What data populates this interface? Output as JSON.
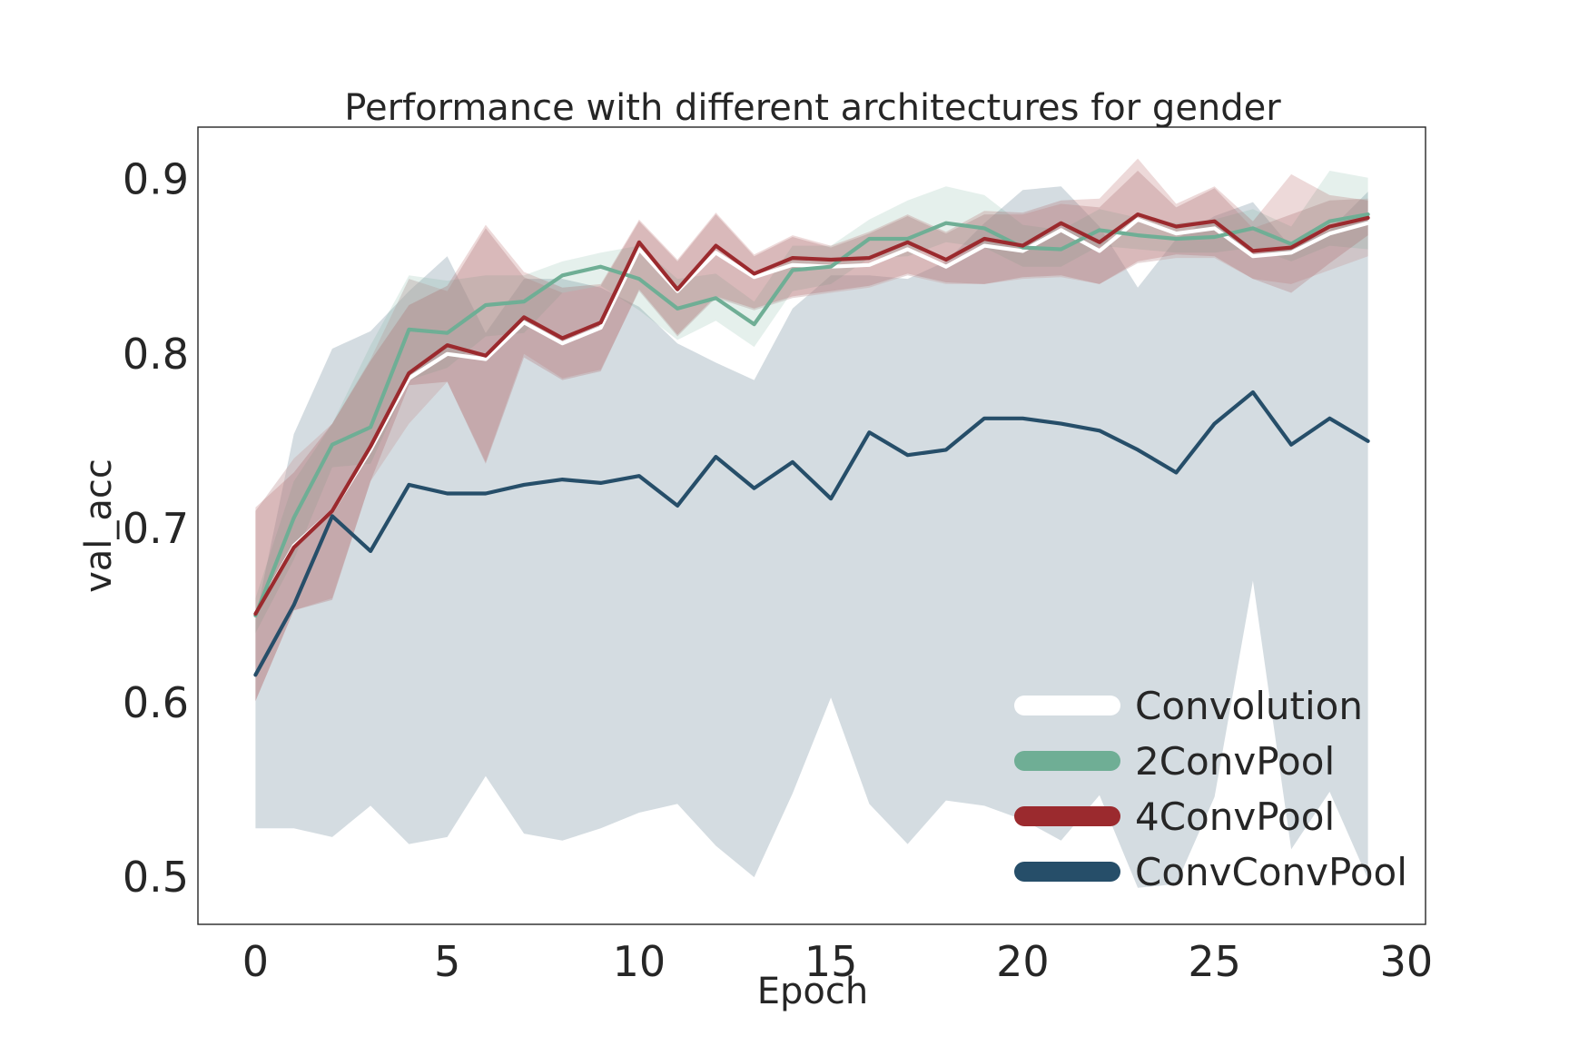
{
  "chart_data": {
    "type": "line",
    "title": "Performance with different architectures for gender",
    "xlabel": "Epoch",
    "ylabel": "val_acc",
    "xlim": [
      -1.5,
      30.5
    ],
    "ylim": [
      0.473,
      0.93
    ],
    "xticks": [
      0,
      5,
      10,
      15,
      20,
      25,
      30
    ],
    "yticks": [
      0.5,
      0.6,
      0.7,
      0.8,
      0.9
    ],
    "xtick_labels": [
      "0",
      "5",
      "10",
      "15",
      "20",
      "25",
      "30"
    ],
    "ytick_labels": [
      "0.5",
      "0.6",
      "0.7",
      "0.8",
      "0.9"
    ],
    "grid": false,
    "legend_position": "lower-right",
    "x": [
      0,
      1,
      2,
      3,
      4,
      5,
      6,
      7,
      8,
      9,
      10,
      11,
      12,
      13,
      14,
      15,
      16,
      17,
      18,
      19,
      20,
      21,
      22,
      23,
      24,
      25,
      26,
      27,
      28,
      29
    ],
    "series": [
      {
        "name": "Convolution",
        "color": "#ffffff",
        "values": [
          0.651,
          0.69,
          0.71,
          0.745,
          0.786,
          0.8,
          0.797,
          0.818,
          0.806,
          0.815,
          0.86,
          0.836,
          0.858,
          0.844,
          0.851,
          0.85,
          0.851,
          0.86,
          0.85,
          0.862,
          0.859,
          0.871,
          0.859,
          0.877,
          0.869,
          0.872,
          0.856,
          0.858,
          0.869,
          0.875
        ],
        "band_low": [
          0.601,
          0.653,
          0.66,
          0.727,
          0.76,
          0.784,
          0.738,
          0.8,
          0.786,
          0.791,
          0.836,
          0.81,
          0.832,
          0.825,
          0.832,
          0.835,
          0.838,
          0.845,
          0.84,
          0.84,
          0.843,
          0.844,
          0.84,
          0.852,
          0.855,
          0.855,
          0.843,
          0.84,
          0.848,
          0.856
        ],
        "band_high": [
          0.71,
          0.74,
          0.76,
          0.797,
          0.843,
          0.836,
          0.872,
          0.844,
          0.835,
          0.839,
          0.876,
          0.853,
          0.88,
          0.856,
          0.867,
          0.861,
          0.869,
          0.879,
          0.869,
          0.88,
          0.88,
          0.886,
          0.884,
          0.905,
          0.884,
          0.895,
          0.872,
          0.88,
          0.888,
          0.889
        ]
      },
      {
        "name": "2ConvPool",
        "color": "#6fae95",
        "values": [
          0.65,
          0.706,
          0.748,
          0.758,
          0.814,
          0.812,
          0.828,
          0.83,
          0.845,
          0.85,
          0.843,
          0.826,
          0.832,
          0.817,
          0.848,
          0.85,
          0.866,
          0.866,
          0.875,
          0.872,
          0.861,
          0.86,
          0.871,
          0.868,
          0.866,
          0.867,
          0.872,
          0.863,
          0.876,
          0.88
        ],
        "band_low": [
          0.64,
          0.682,
          0.735,
          0.737,
          0.785,
          0.792,
          0.81,
          0.812,
          0.835,
          0.839,
          0.825,
          0.808,
          0.819,
          0.804,
          0.836,
          0.84,
          0.855,
          0.856,
          0.864,
          0.861,
          0.85,
          0.85,
          0.862,
          0.86,
          0.858,
          0.858,
          0.861,
          0.853,
          0.862,
          0.86
        ],
        "band_high": [
          0.66,
          0.727,
          0.76,
          0.805,
          0.845,
          0.842,
          0.845,
          0.845,
          0.853,
          0.858,
          0.862,
          0.843,
          0.846,
          0.83,
          0.862,
          0.862,
          0.877,
          0.888,
          0.896,
          0.891,
          0.874,
          0.871,
          0.883,
          0.878,
          0.875,
          0.877,
          0.883,
          0.873,
          0.905,
          0.901
        ]
      },
      {
        "name": "4ConvPool",
        "color": "#9b2a2e",
        "values": [
          0.651,
          0.689,
          0.71,
          0.747,
          0.789,
          0.805,
          0.799,
          0.821,
          0.809,
          0.818,
          0.864,
          0.837,
          0.862,
          0.846,
          0.855,
          0.854,
          0.855,
          0.864,
          0.854,
          0.866,
          0.862,
          0.875,
          0.864,
          0.88,
          0.873,
          0.876,
          0.859,
          0.861,
          0.873,
          0.878
        ],
        "band_low": [
          0.601,
          0.653,
          0.659,
          0.727,
          0.782,
          0.784,
          0.737,
          0.798,
          0.785,
          0.79,
          0.837,
          0.811,
          0.833,
          0.826,
          0.833,
          0.836,
          0.839,
          0.846,
          0.841,
          0.84,
          0.844,
          0.845,
          0.84,
          0.853,
          0.857,
          0.856,
          0.843,
          0.835,
          0.852,
          0.868
        ],
        "band_high": [
          0.712,
          0.732,
          0.76,
          0.796,
          0.828,
          0.839,
          0.874,
          0.847,
          0.838,
          0.84,
          0.877,
          0.854,
          0.881,
          0.857,
          0.868,
          0.862,
          0.87,
          0.88,
          0.87,
          0.882,
          0.881,
          0.888,
          0.889,
          0.912,
          0.886,
          0.896,
          0.876,
          0.903,
          0.891,
          0.888
        ]
      },
      {
        "name": "ConvConvPool",
        "color": "#264e69",
        "values": [
          0.616,
          0.656,
          0.707,
          0.687,
          0.725,
          0.72,
          0.72,
          0.725,
          0.728,
          0.726,
          0.73,
          0.713,
          0.741,
          0.723,
          0.738,
          0.717,
          0.755,
          0.742,
          0.745,
          0.763,
          0.763,
          0.76,
          0.756,
          0.745,
          0.732,
          0.76,
          0.778,
          0.748,
          0.763,
          0.75
        ],
        "band_low": [
          0.528,
          0.528,
          0.523,
          0.541,
          0.519,
          0.523,
          0.558,
          0.525,
          0.521,
          0.528,
          0.537,
          0.542,
          0.518,
          0.5,
          0.548,
          0.603,
          0.542,
          0.519,
          0.544,
          0.541,
          0.533,
          0.521,
          0.547,
          0.494,
          0.496,
          0.546,
          0.67,
          0.516,
          0.549,
          0.499
        ],
        "band_high": [
          0.648,
          0.754,
          0.803,
          0.813,
          0.836,
          0.856,
          0.812,
          0.843,
          0.843,
          0.838,
          0.827,
          0.806,
          0.795,
          0.785,
          0.826,
          0.845,
          0.845,
          0.843,
          0.853,
          0.875,
          0.894,
          0.896,
          0.873,
          0.838,
          0.866,
          0.879,
          0.887,
          0.861,
          0.871,
          0.893
        ]
      }
    ]
  }
}
